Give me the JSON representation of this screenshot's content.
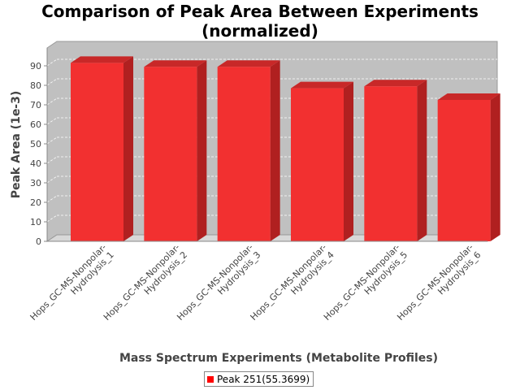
{
  "chart_data": {
    "type": "bar",
    "title": "Comparison of Peak Area Between Experiments\n(normalized)",
    "title_lines": [
      "Comparison of Peak Area Between Experiments",
      "(normalized)"
    ],
    "xlabel": "Mass Spectrum Experiments (Metabolite Profiles)",
    "ylabel": "Peak Area (1e-3)",
    "categories": [
      "Hops_GC-MS-Nonpolar-Hydrolysis_1",
      "Hops_GC-MS-Nonpolar-Hydrolysis_2",
      "Hops_GC-MS-Nonpolar-Hydrolysis_3",
      "Hops_GC-MS-Nonpolar-Hydrolysis_4",
      "Hops_GC-MS-Nonpolar-Hydrolysis_5",
      "Hops_GC-MS-Nonpolar-Hydrolysis_6"
    ],
    "category_lines": [
      [
        "Hops_GC-MS-Nonpolar-",
        "Hydrolysis_1"
      ],
      [
        "Hops_GC-MS-Nonpolar-",
        "Hydrolysis_2"
      ],
      [
        "Hops_GC-MS-Nonpolar-",
        "Hydrolysis_3"
      ],
      [
        "Hops_GC-MS-Nonpolar-",
        "Hydrolysis_4"
      ],
      [
        "Hops_GC-MS-Nonpolar-",
        "Hydrolysis_5"
      ],
      [
        "Hops_GC-MS-Nonpolar-",
        "Hydrolysis_6"
      ]
    ],
    "series": [
      {
        "name": "Peak 251(55.3699)",
        "values": [
          91.5,
          89.5,
          89.5,
          78.5,
          79.5,
          72.5
        ]
      }
    ],
    "ylim": [
      0,
      95
    ],
    "yticks": [
      0,
      10,
      20,
      30,
      40,
      50,
      60,
      70,
      80,
      90
    ],
    "grid": true,
    "legend_position": "bottom",
    "colors": {
      "bar_front": "#f23030",
      "bar_side": "#b02020",
      "bar_top": "#c82828",
      "plot_back": "#c0c0c0",
      "plot_floor": "#d8d8d8"
    }
  }
}
